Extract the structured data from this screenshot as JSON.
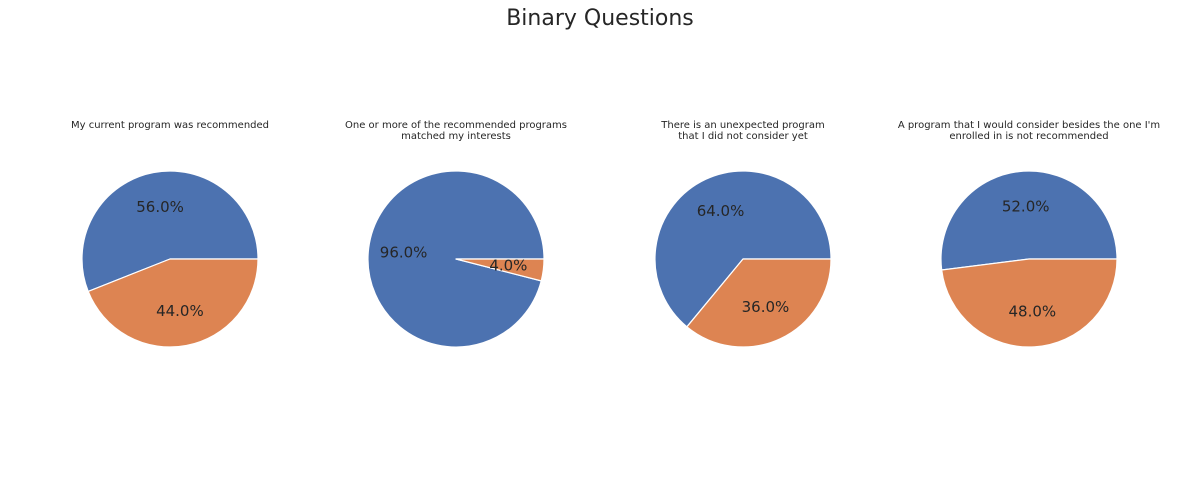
{
  "colors": {
    "yes": "#4c72b0",
    "no": "#dd8452",
    "edge": "#ffffff",
    "text": "#262626"
  },
  "chart_data": {
    "title": "Binary Questions",
    "charts": [
      {
        "type": "pie",
        "title": "My current program was recommended",
        "slices": [
          {
            "value": 56.0,
            "label": "56.0%"
          },
          {
            "value": 44.0,
            "label": "44.0%"
          }
        ]
      },
      {
        "type": "pie",
        "title": "One or more of the recommended programs\nmatched my interests",
        "slices": [
          {
            "value": 96.0,
            "label": "96.0%"
          },
          {
            "value": 4.0,
            "label": "4.0%"
          }
        ]
      },
      {
        "type": "pie",
        "title": "There is an unexpected program\nthat I did not consider yet",
        "slices": [
          {
            "value": 64.0,
            "label": "64.0%"
          },
          {
            "value": 36.0,
            "label": "36.0%"
          }
        ]
      },
      {
        "type": "pie",
        "title": "A program that I would consider besides the one I'm\nenrolled in is not recommended",
        "slices": [
          {
            "value": 52.0,
            "label": "52.0%"
          },
          {
            "value": 48.0,
            "label": "48.0%"
          }
        ]
      }
    ]
  }
}
